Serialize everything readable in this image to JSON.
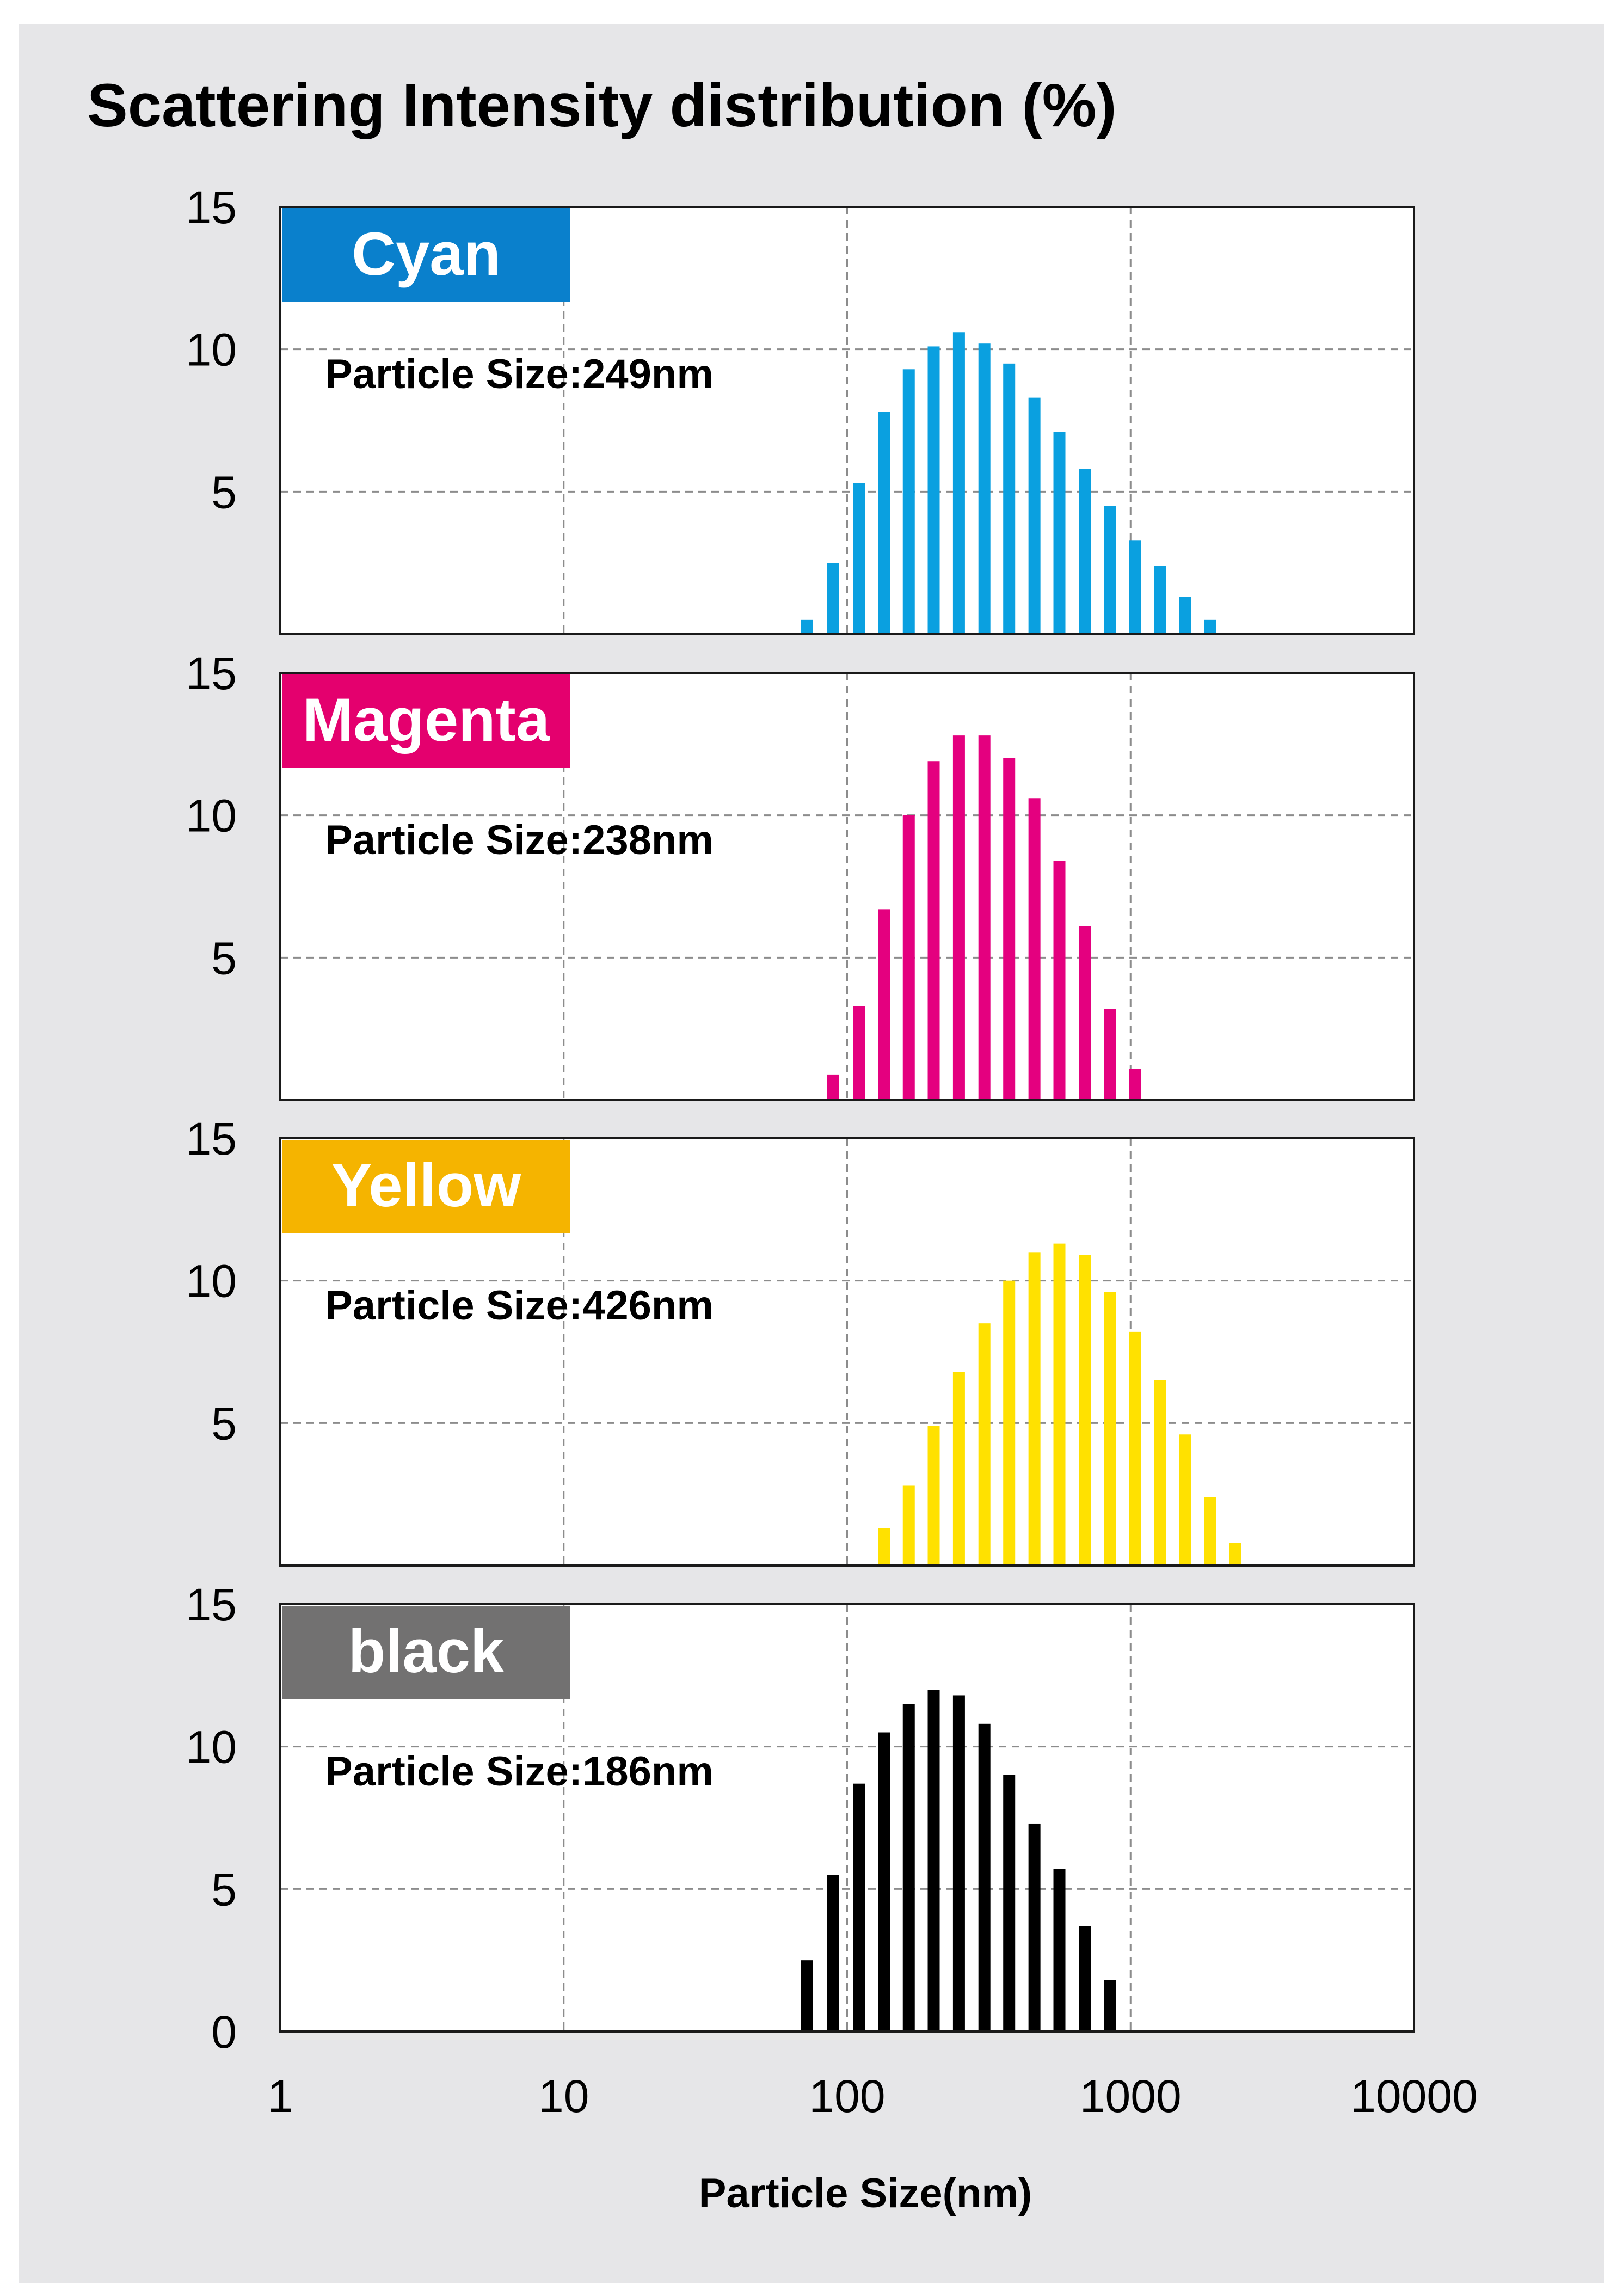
{
  "chart_data": {
    "type": "bar",
    "title": "Scattering Intensity distribution (%)",
    "xlabel": "Particle Size(nm)",
    "ylabel": "",
    "x_scale": "log",
    "xlim": [
      1,
      10000
    ],
    "x_ticks": [
      "1",
      "10",
      "100",
      "1000",
      "10000"
    ],
    "grid": "dashed",
    "panels": [
      {
        "name": "Cyan",
        "color": "#0a80cc",
        "bar_color": "#0aa0e0",
        "annotation": "Particle Size:249nm",
        "ylim": [
          0,
          15
        ],
        "y_ticks": [
          "15",
          "10",
          "5"
        ],
        "x": [
          72,
          89,
          110,
          135,
          165,
          202,
          248,
          305,
          373,
          458,
          561,
          689,
          845,
          1036,
          1270,
          1557,
          1910
        ],
        "values": [
          0.5,
          2.5,
          5.3,
          7.8,
          9.3,
          10.1,
          10.6,
          10.2,
          9.5,
          8.3,
          7.1,
          5.8,
          4.5,
          3.3,
          2.4,
          1.3,
          0.5
        ]
      },
      {
        "name": "Magenta",
        "color": "#e4006e",
        "bar_color": "#e4007f",
        "annotation": "Particle Size:238nm",
        "ylim": [
          0,
          15
        ],
        "y_ticks": [
          "15",
          "10",
          "5"
        ],
        "x": [
          89,
          110,
          135,
          165,
          202,
          248,
          305,
          373,
          458,
          561,
          689,
          845,
          1036
        ],
        "values": [
          0.9,
          3.3,
          6.7,
          10.0,
          11.9,
          12.8,
          12.8,
          12.0,
          10.6,
          8.4,
          6.1,
          3.2,
          1.1
        ]
      },
      {
        "name": "Yellow",
        "color": "#f5b400",
        "bar_color": "#ffe100",
        "annotation": "Particle Size:426nm",
        "ylim": [
          0,
          15
        ],
        "y_ticks": [
          "15",
          "10",
          "5"
        ],
        "x": [
          135,
          165,
          202,
          248,
          305,
          373,
          458,
          561,
          689,
          845,
          1036,
          1270,
          1557,
          1910,
          2343
        ],
        "values": [
          1.3,
          2.8,
          4.9,
          6.8,
          8.5,
          10.0,
          11.0,
          11.3,
          10.9,
          9.6,
          8.2,
          6.5,
          4.6,
          2.4,
          0.8
        ]
      },
      {
        "name": "black",
        "color": "#727171",
        "bar_color": "#000000",
        "annotation": "Particle Size:186nm",
        "ylim": [
          0,
          15
        ],
        "y_ticks": [
          "15",
          "10",
          "5",
          "0"
        ],
        "x": [
          72,
          89,
          110,
          135,
          165,
          202,
          248,
          305,
          373,
          458,
          561,
          689,
          845
        ],
        "values": [
          2.5,
          5.5,
          8.7,
          10.5,
          11.5,
          12.0,
          11.8,
          10.8,
          9.0,
          7.3,
          5.7,
          3.7,
          1.8
        ]
      }
    ]
  }
}
